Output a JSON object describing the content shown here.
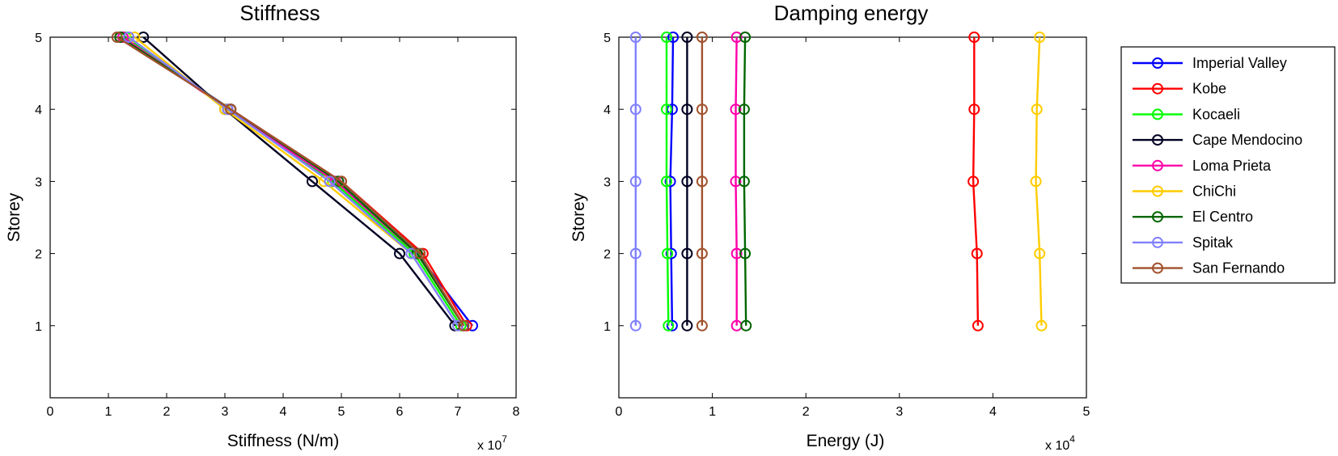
{
  "series_colors": [
    "#0000ff",
    "#ff0000",
    "#00ff00",
    "#000022",
    "#ff00aa",
    "#ffcc00",
    "#006600",
    "#8080ff",
    "#a0522d"
  ],
  "legend": {
    "entries": [
      "Imperial Valley",
      "Kobe",
      "Kocaeli",
      "Cape Mendocino",
      "Loma Prieta",
      "ChiChi",
      "El Centro",
      "Spitak",
      "San Fernando"
    ]
  },
  "chart_data": [
    {
      "type": "line",
      "title": "Stiffness",
      "xlabel": "Stiffness (N/m)",
      "ylabel": "Storey",
      "x_multiplier_label": "x 10",
      "x_multiplier_exp": "7",
      "x_scale": 10000000,
      "xlim": [
        0,
        8
      ],
      "ylim": [
        0,
        5
      ],
      "xticks": [
        "0",
        "1",
        "2",
        "3",
        "4",
        "5",
        "6",
        "7",
        "8"
      ],
      "yticks": [
        "1",
        "2",
        "3",
        "4",
        "5"
      ],
      "grid": false,
      "storeys": [
        1,
        2,
        3,
        4,
        5
      ],
      "series": [
        {
          "name": "Imperial Valley",
          "x": [
            7.25,
            6.3,
            4.95,
            3.1,
            1.25
          ]
        },
        {
          "name": "Kobe",
          "x": [
            7.15,
            6.4,
            5.0,
            3.1,
            1.2
          ]
        },
        {
          "name": "Kocaeli",
          "x": [
            7.05,
            6.25,
            4.85,
            3.05,
            1.3
          ]
        },
        {
          "name": "Cape Mendocino",
          "x": [
            6.95,
            6.0,
            4.5,
            3.0,
            1.6
          ]
        },
        {
          "name": "Loma Prieta",
          "x": [
            7.1,
            6.3,
            4.9,
            3.05,
            1.25
          ]
        },
        {
          "name": "ChiChi",
          "x": [
            7.0,
            6.2,
            4.7,
            3.0,
            1.45
          ]
        },
        {
          "name": "El Centro",
          "x": [
            7.1,
            6.3,
            4.95,
            3.1,
            1.2
          ]
        },
        {
          "name": "Spitak",
          "x": [
            7.0,
            6.2,
            4.8,
            3.05,
            1.35
          ]
        },
        {
          "name": "San Fernando",
          "x": [
            7.1,
            6.35,
            5.0,
            3.1,
            1.15
          ]
        }
      ]
    },
    {
      "type": "line",
      "title": "Damping energy",
      "xlabel": "Energy (J)",
      "ylabel": "Storey",
      "x_multiplier_label": "x 10",
      "x_multiplier_exp": "4",
      "x_scale": 10000,
      "xlim": [
        0,
        5
      ],
      "ylim": [
        0,
        5
      ],
      "xticks": [
        "0",
        "1",
        "2",
        "3",
        "4",
        "5"
      ],
      "yticks": [
        "1",
        "2",
        "3",
        "4",
        "5"
      ],
      "grid": false,
      "storeys": [
        1,
        2,
        3,
        4,
        5
      ],
      "series": [
        {
          "name": "Imperial Valley",
          "x": [
            0.57,
            0.56,
            0.55,
            0.57,
            0.58
          ]
        },
        {
          "name": "Kobe",
          "x": [
            3.84,
            3.83,
            3.79,
            3.8,
            3.8
          ]
        },
        {
          "name": "Kocaeli",
          "x": [
            0.53,
            0.52,
            0.51,
            0.51,
            0.51
          ]
        },
        {
          "name": "Cape Mendocino",
          "x": [
            0.73,
            0.73,
            0.73,
            0.73,
            0.73
          ]
        },
        {
          "name": "Loma Prieta",
          "x": [
            1.26,
            1.26,
            1.25,
            1.25,
            1.26
          ]
        },
        {
          "name": "ChiChi",
          "x": [
            4.52,
            4.5,
            4.46,
            4.47,
            4.5
          ]
        },
        {
          "name": "El Centro",
          "x": [
            1.36,
            1.35,
            1.34,
            1.34,
            1.35
          ]
        },
        {
          "name": "Spitak",
          "x": [
            0.18,
            0.18,
            0.18,
            0.18,
            0.18
          ]
        },
        {
          "name": "San Fernando",
          "x": [
            0.89,
            0.89,
            0.89,
            0.89,
            0.89
          ]
        }
      ]
    }
  ]
}
